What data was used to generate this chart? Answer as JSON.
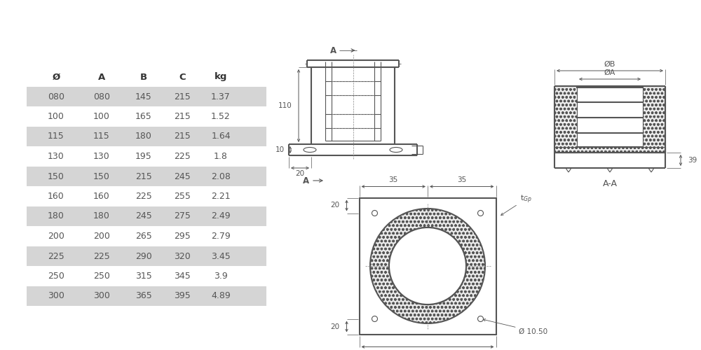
{
  "table_headers": [
    "Ø",
    "A",
    "B",
    "C",
    "kg"
  ],
  "table_rows": [
    [
      "080",
      "080",
      "145",
      "215",
      "1.37"
    ],
    [
      "100",
      "100",
      "165",
      "215",
      "1.52"
    ],
    [
      "115",
      "115",
      "180",
      "215",
      "1.64"
    ],
    [
      "130",
      "130",
      "195",
      "225",
      "1.8"
    ],
    [
      "150",
      "150",
      "215",
      "245",
      "2.08"
    ],
    [
      "160",
      "160",
      "225",
      "255",
      "2.21"
    ],
    [
      "180",
      "180",
      "245",
      "275",
      "2.49"
    ],
    [
      "200",
      "200",
      "265",
      "295",
      "2.79"
    ],
    [
      "225",
      "225",
      "290",
      "320",
      "3.45"
    ],
    [
      "250",
      "250",
      "315",
      "345",
      "3.9"
    ],
    [
      "300",
      "300",
      "365",
      "395",
      "4.89"
    ]
  ],
  "shaded_rows": [
    0,
    2,
    4,
    6,
    8,
    10
  ],
  "bg_color": "#ffffff",
  "row_shade_color": "#d5d5d5",
  "text_color": "#555555",
  "header_color": "#333333",
  "line_color": "#555555"
}
